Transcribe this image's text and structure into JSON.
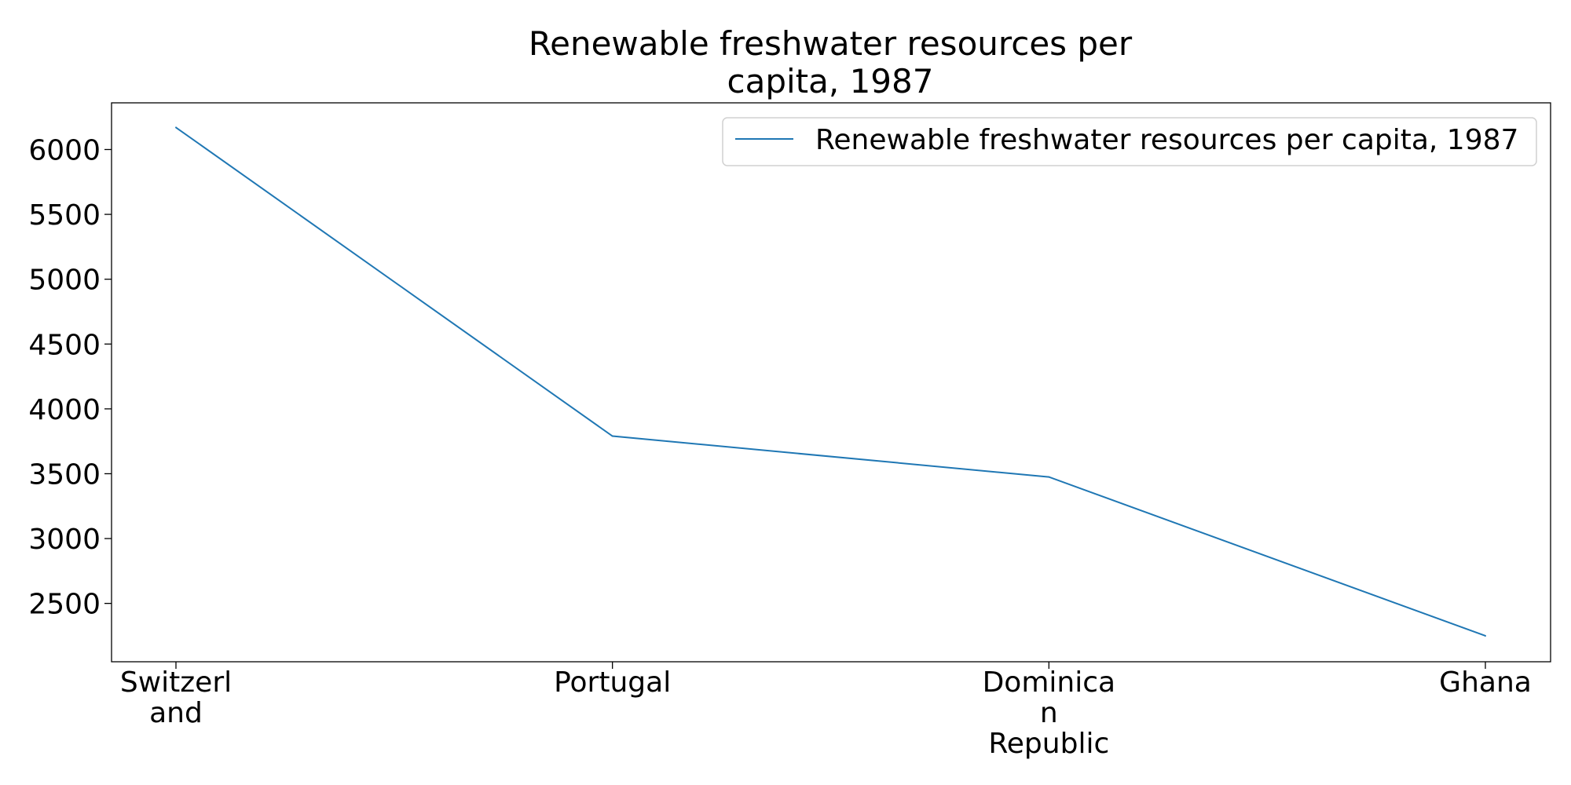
{
  "chart_data": {
    "type": "line",
    "title": "Renewable freshwater resources per capita, 1987",
    "title_lines": [
      "Renewable freshwater resources per",
      "capita, 1987"
    ],
    "categories": [
      "Switzerland",
      "Portugal",
      "Dominican Republic",
      "Ghana"
    ],
    "category_label_lines": [
      [
        "Switzerl",
        "and"
      ],
      [
        "Portugal"
      ],
      [
        "Dominica",
        "n",
        "Republic"
      ],
      [
        "Ghana"
      ]
    ],
    "series": [
      {
        "name": "Renewable freshwater resources per capita, 1987",
        "values": [
          6170,
          3790,
          3475,
          2250
        ],
        "color": "#1f77b4"
      }
    ],
    "yticks": [
      2500,
      3000,
      3500,
      4000,
      4500,
      5000,
      5500,
      6000
    ],
    "ylim": [
      2050,
      6360
    ],
    "xlabel": "",
    "ylabel": "",
    "grid": false,
    "legend_position": "top-right"
  }
}
